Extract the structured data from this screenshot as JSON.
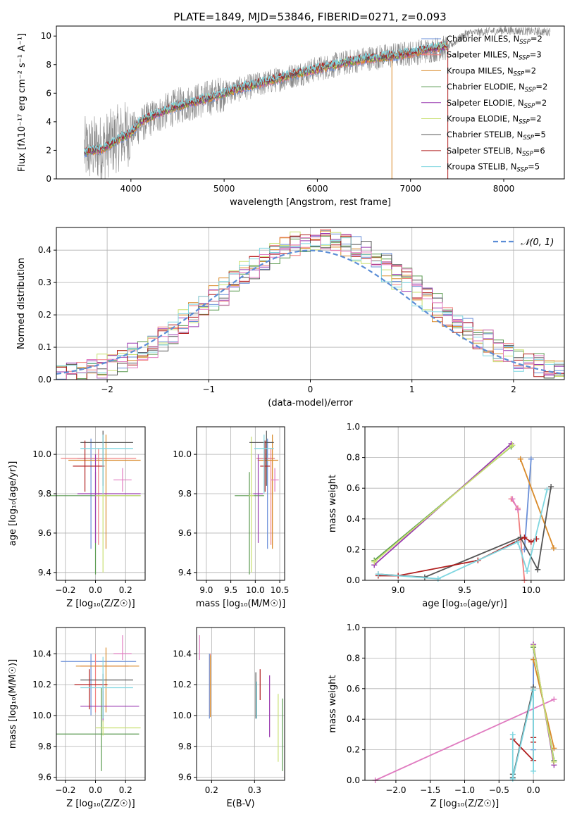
{
  "figure_title": "PLATE=1849, MJD=53846, FIBERID=0271, z=0.093",
  "legend_note": "Legend labels are rendered as shown",
  "colors": {
    "chabrier_miles": "#6a8fd8",
    "salpeter_miles": "#f07f7f",
    "kroupa_miles": "#d98a2a",
    "chabrier_elodie": "#5a9a50",
    "salpeter_elodie": "#9a3ab0",
    "kroupa_elodie": "#c8e070",
    "chabrier_stelib": "#555555",
    "salpeter_stelib": "#b01e1e",
    "kroupa_stelib": "#7fd6e0",
    "pink": "#e07bc0",
    "gray_data": "#888888",
    "normal_curve": "#5b8dd6"
  },
  "chart_data": [
    {
      "panel": "spectrum",
      "type": "line",
      "title": "PLATE=1849, MJD=53846, FIBERID=0271, z=0.093",
      "xlabel": "wavelength [Angstrom, rest frame]",
      "ylabel": "Flux [fλ10⁻¹⁷ erg cm⁻² s⁻¹ A⁻¹]",
      "xlim": [
        3200,
        8650
      ],
      "ylim": [
        0,
        10.7
      ],
      "xticks": [
        "4000",
        "5000",
        "6000",
        "7000",
        "8000"
      ],
      "yticks": [
        "0",
        "2",
        "4",
        "6",
        "8",
        "10"
      ],
      "grid": false,
      "legend_position": "upper right",
      "legend": [
        "Chabrier MILES, N_SSP=2",
        "Salpeter MILES, N_SSP=3",
        "Kroupa MILES, N_SSP=2",
        "Chabrier ELODIE, N_SSP=2",
        "Salpeter ELODIE, N_SSP=2",
        "Kroupa ELODIE, N_SSP=2",
        "Chabrier STELIB, N_SSP=5",
        "Salpeter STELIB, N_SSP=6",
        "Kroupa STELIB, N_SSP=5"
      ],
      "legend_display": [
        {
          "name": "Chabrier MILES, N",
          "sub": "SSP",
          "tail": "=2"
        },
        {
          "name": "Salpeter MILES, N",
          "sub": "SSP",
          "tail": "=3"
        },
        {
          "name": "Kroupa MILES, N",
          "sub": "SSP",
          "tail": "=2"
        },
        {
          "name": "Chabrier ELODIE, N",
          "sub": "SSP",
          "tail": "=2"
        },
        {
          "name": "Salpeter ELODIE, N",
          "sub": "SSP",
          "tail": "=2"
        },
        {
          "name": "Kroupa ELODIE, N",
          "sub": "SSP",
          "tail": "=2"
        },
        {
          "name": "Chabrier STELIB, N",
          "sub": "SSP",
          "tail": "=5"
        },
        {
          "name": "Salpeter STELIB, N",
          "sub": "SSP",
          "tail": "=6"
        },
        {
          "name": "Kroupa STELIB, N",
          "sub": "SSP",
          "tail": "=5"
        }
      ],
      "model_continuum": {
        "x": [
          3500,
          3700,
          3900,
          4000,
          4100,
          4300,
          4500,
          4800,
          5000,
          5200,
          5500,
          5800,
          6000,
          6200,
          6500,
          6800,
          7000,
          7200,
          7400
        ],
        "y": [
          1.9,
          2.1,
          2.9,
          3.2,
          4.0,
          4.6,
          5.1,
          5.6,
          6.0,
          6.4,
          6.9,
          7.4,
          7.7,
          8.0,
          8.4,
          8.6,
          8.8,
          9.1,
          9.3
        ]
      },
      "data_continuum": {
        "x": [
          3500,
          3700,
          3900,
          4000,
          4200,
          4500,
          4800,
          5000,
          5300,
          5600,
          6000,
          6500,
          7000,
          7400,
          7600,
          8000,
          8400
        ],
        "y": [
          2.0,
          2.2,
          3.0,
          3.3,
          4.2,
          5.1,
          5.6,
          6.0,
          6.5,
          7.0,
          7.7,
          8.4,
          8.8,
          9.2,
          10.2,
          10.4,
          10.3
        ]
      }
    },
    {
      "panel": "residual_histogram",
      "type": "histogram",
      "xlabel": "(data-model)/error",
      "ylabel": "Normed distribution",
      "xlim": [
        -2.5,
        2.5
      ],
      "ylim": [
        0,
        0.47
      ],
      "xticks": [
        "−2",
        "−1",
        "0",
        "1",
        "2"
      ],
      "yticks": [
        "0.0",
        "0.1",
        "0.2",
        "0.3",
        "0.4"
      ],
      "grid": true,
      "legend": [
        "𝒩(0, 1)"
      ],
      "legend_position": "upper right",
      "bin_width": 0.1,
      "normal": {
        "mu": 0,
        "sigma": 1
      }
    },
    {
      "panel": "age_vs_Z",
      "type": "errorbar",
      "xlabel": "Z [log₁₀(Z/Z☉)]",
      "ylabel": "age  [log₁₀(age/yr)]",
      "xlim": [
        -0.26,
        0.33
      ],
      "ylim": [
        9.36,
        10.14
      ],
      "xticks": [
        "−0.2",
        "0.0",
        "0.2"
      ],
      "yticks": [
        "9.4",
        "9.6",
        "9.8",
        "10.0"
      ],
      "grid": true,
      "points": [
        {
          "series": "chabrier_miles",
          "x": -0.03,
          "xerr": [
            0.09,
            0.09
          ],
          "y": 9.98,
          "yerr": [
            0.46,
            0.1
          ]
        },
        {
          "series": "salpeter_miles",
          "x": 0.02,
          "xerr": [
            0.25,
            0.25
          ],
          "y": 9.98,
          "yerr": [
            0.44,
            0.05
          ]
        },
        {
          "series": "kroupa_miles",
          "x": 0.07,
          "xerr": [
            0.25,
            0.23
          ],
          "y": 9.97,
          "yerr": [
            0.45,
            0.13
          ]
        },
        {
          "series": "chabrier_elodie",
          "x": 0.0,
          "xerr": [
            0.3,
            0.3
          ],
          "y": 9.79,
          "yerr": [
            0.4,
            0.12
          ]
        },
        {
          "series": "salpeter_elodie",
          "x": 0.0,
          "xerr": [
            0.12,
            0.3
          ],
          "y": 9.8,
          "yerr": [
            0.25,
            0.2
          ]
        },
        {
          "series": "kroupa_elodie",
          "x": 0.05,
          "xerr": [
            0.05,
            0.25
          ],
          "y": 9.79,
          "yerr": [
            0.39,
            0.3
          ]
        },
        {
          "series": "chabrier_stelib",
          "x": 0.05,
          "xerr": [
            0.15,
            0.2
          ],
          "y": 10.06,
          "yerr": [
            0.22,
            0.06
          ]
        },
        {
          "series": "salpeter_stelib",
          "x": -0.07,
          "xerr": [
            0.08,
            0.13
          ],
          "y": 9.94,
          "yerr": [
            0.13,
            0.13
          ]
        },
        {
          "series": "kroupa_stelib",
          "x": 0.05,
          "xerr": [
            0.15,
            0.2
          ],
          "y": 10.03,
          "yerr": [
            0.23,
            0.07
          ]
        },
        {
          "series": "pink",
          "x": 0.18,
          "xerr": [
            0.06,
            0.06
          ],
          "y": 9.87,
          "yerr": [
            0.06,
            0.06
          ]
        }
      ]
    },
    {
      "panel": "age_vs_mass",
      "type": "errorbar",
      "xlabel": "mass [log₁₀(M/M☉)]",
      "ylabel": "",
      "xlim": [
        8.8,
        10.6
      ],
      "ylim": [
        9.36,
        10.14
      ],
      "xticks": [
        "9.0",
        "9.5",
        "10.0",
        "10.5"
      ],
      "yticks": [
        "9.4",
        "9.6",
        "9.8",
        "10.0"
      ],
      "grid": true,
      "points": [
        {
          "series": "chabrier_miles",
          "x": 10.25,
          "xerr": [
            0.2,
            0.15
          ],
          "y": 9.98,
          "yerr": [
            0.46,
            0.1
          ]
        },
        {
          "series": "salpeter_miles",
          "x": 10.32,
          "xerr": [
            0.3,
            0.08
          ],
          "y": 9.98,
          "yerr": [
            0.44,
            0.05
          ]
        },
        {
          "series": "kroupa_miles",
          "x": 10.35,
          "xerr": [
            0.3,
            0.12
          ],
          "y": 9.97,
          "yerr": [
            0.45,
            0.13
          ]
        },
        {
          "series": "chabrier_elodie",
          "x": 9.88,
          "xerr": [
            0.3,
            0.3
          ],
          "y": 9.79,
          "yerr": [
            0.4,
            0.12
          ]
        },
        {
          "series": "salpeter_elodie",
          "x": 10.06,
          "xerr": [
            0.1,
            0.1
          ],
          "y": 9.8,
          "yerr": [
            0.25,
            0.2
          ]
        },
        {
          "series": "kroupa_elodie",
          "x": 9.92,
          "xerr": [
            0.05,
            0.05
          ],
          "y": 9.79,
          "yerr": [
            0.39,
            0.3
          ]
        },
        {
          "series": "chabrier_stelib",
          "x": 10.23,
          "xerr": [
            0.35,
            0.15
          ],
          "y": 10.06,
          "yerr": [
            0.22,
            0.06
          ]
        },
        {
          "series": "salpeter_stelib",
          "x": 10.2,
          "xerr": [
            0.1,
            0.1
          ],
          "y": 9.94,
          "yerr": [
            0.13,
            0.13
          ]
        },
        {
          "series": "kroupa_stelib",
          "x": 10.18,
          "xerr": [
            0.2,
            0.2
          ],
          "y": 10.03,
          "yerr": [
            0.23,
            0.07
          ]
        },
        {
          "series": "pink",
          "x": 10.4,
          "xerr": [
            0.08,
            0.08
          ],
          "y": 9.87,
          "yerr": [
            0.06,
            0.06
          ]
        }
      ]
    },
    {
      "panel": "mass_weight_vs_age",
      "type": "line",
      "xlabel": "age  [log₁₀(age/yr)]",
      "ylabel": "mass weight",
      "xlim": [
        8.75,
        10.25
      ],
      "ylim": [
        0,
        1.0
      ],
      "xticks": [
        "9.0",
        "9.5",
        "10.0"
      ],
      "yticks": [
        "0.0",
        "0.2",
        "0.4",
        "0.6",
        "0.8",
        "1.0"
      ],
      "grid": true,
      "series": [
        {
          "name": "chabrier_miles",
          "x": [
            9.95,
            10.0
          ],
          "y": [
            0.2,
            0.79
          ]
        },
        {
          "name": "salpeter_miles",
          "x": [
            9.85,
            9.9,
            9.95
          ],
          "y": [
            0.53,
            0.47,
            0.0
          ]
        },
        {
          "name": "kroupa_miles",
          "x": [
            9.92,
            10.17
          ],
          "y": [
            0.79,
            0.21
          ]
        },
        {
          "name": "chabrier_elodie",
          "x": [
            8.82,
            9.85
          ],
          "y": [
            0.13,
            0.87
          ]
        },
        {
          "name": "salpeter_elodie",
          "x": [
            8.82,
            9.85
          ],
          "y": [
            0.1,
            0.89
          ]
        },
        {
          "name": "kroupa_elodie",
          "x": [
            8.82,
            9.86
          ],
          "y": [
            0.12,
            0.88
          ]
        },
        {
          "name": "chabrier_stelib",
          "x": [
            8.85,
            9.2,
            9.92,
            10.05,
            10.15
          ],
          "y": [
            0.04,
            0.02,
            0.28,
            0.07,
            0.61
          ]
        },
        {
          "name": "salpeter_stelib",
          "x": [
            8.85,
            9.0,
            9.6,
            9.95,
            10.0,
            10.04
          ],
          "y": [
            0.03,
            0.03,
            0.13,
            0.28,
            0.25,
            0.27
          ]
        },
        {
          "name": "kroupa_stelib",
          "x": [
            8.85,
            9.3,
            9.9,
            9.97,
            10.12
          ],
          "y": [
            0.04,
            0.01,
            0.25,
            0.06,
            0.59
          ]
        },
        {
          "name": "pink",
          "x": [
            9.86,
            9.9
          ],
          "y": [
            0.53,
            0.46
          ]
        }
      ]
    },
    {
      "panel": "mass_vs_Z",
      "type": "errorbar",
      "xlabel": "Z [log₁₀(Z/Z☉)]",
      "ylabel": "mass [log₁₀(M/M☉)]",
      "xlim": [
        -0.26,
        0.33
      ],
      "ylim": [
        9.58,
        10.57
      ],
      "xticks": [
        "−0.2",
        "0.0",
        "0.2"
      ],
      "yticks": [
        "9.6",
        "9.8",
        "10.0",
        "10.2",
        "10.4"
      ],
      "grid": true,
      "points": [
        {
          "series": "chabrier_miles",
          "x": -0.03,
          "xerr": [
            0.2,
            0.3
          ],
          "y": 10.35,
          "yerr": [
            0.35,
            0.05
          ]
        },
        {
          "series": "salpeter_miles",
          "x": 0.0,
          "xerr": [
            0.1,
            0.22
          ],
          "y": 10.32,
          "yerr": [
            0.3,
            0.08
          ]
        },
        {
          "series": "kroupa_miles",
          "x": 0.07,
          "xerr": [
            0.2,
            0.22
          ],
          "y": 10.32,
          "yerr": [
            0.3,
            0.12
          ]
        },
        {
          "series": "chabrier_elodie",
          "x": 0.04,
          "xerr": [
            0.3,
            0.25
          ],
          "y": 9.88,
          "yerr": [
            0.24,
            0.3
          ]
        },
        {
          "series": "salpeter_elodie",
          "x": 0.05,
          "xerr": [
            0.15,
            0.24
          ],
          "y": 10.06,
          "yerr": [
            0.1,
            0.1
          ]
        },
        {
          "series": "kroupa_elodie",
          "x": 0.05,
          "xerr": [
            0.05,
            0.25
          ],
          "y": 9.92,
          "yerr": [
            0.05,
            0.05
          ]
        },
        {
          "series": "chabrier_stelib",
          "x": 0.05,
          "xerr": [
            0.15,
            0.2
          ],
          "y": 10.23,
          "yerr": [
            0.25,
            0.04
          ]
        },
        {
          "series": "salpeter_stelib",
          "x": -0.04,
          "xerr": [
            0.1,
            0.12
          ],
          "y": 10.2,
          "yerr": [
            0.16,
            0.1
          ]
        },
        {
          "series": "kroupa_stelib",
          "x": 0.05,
          "xerr": [
            0.15,
            0.2
          ],
          "y": 10.18,
          "yerr": [
            0.2,
            0.2
          ]
        },
        {
          "series": "pink",
          "x": 0.18,
          "xerr": [
            0.06,
            0.06
          ],
          "y": 10.4,
          "yerr": [
            0.04,
            0.12
          ]
        }
      ]
    },
    {
      "panel": "mass_vs_ebv",
      "type": "errorbar",
      "xlabel": "E(B-V)",
      "ylabel": "",
      "xlim": [
        0.165,
        0.37
      ],
      "ylim": [
        9.58,
        10.57
      ],
      "xticks": [
        "0.2",
        "0.3"
      ],
      "yticks": [
        "9.6",
        "9.8",
        "10.0",
        "10.2",
        "10.4"
      ],
      "grid": true,
      "points": [
        {
          "series": "chabrier_miles",
          "x": 0.195,
          "y": 10.2,
          "yerr": [
            0.22,
            0.2
          ]
        },
        {
          "series": "salpeter_miles",
          "x": 0.197,
          "y": 10.2,
          "yerr": [
            0.2,
            0.2
          ]
        },
        {
          "series": "kroupa_miles",
          "x": 0.197,
          "y": 10.19,
          "yerr": [
            0.2,
            0.2
          ]
        },
        {
          "series": "chabrier_elodie",
          "x": 0.365,
          "y": 9.88,
          "yerr": [
            0.24,
            0.23
          ]
        },
        {
          "series": "salpeter_elodie",
          "x": 0.335,
          "y": 10.06,
          "yerr": [
            0.2,
            0.2
          ]
        },
        {
          "series": "kroupa_elodie",
          "x": 0.355,
          "y": 9.92,
          "yerr": [
            0.22,
            0.22
          ]
        },
        {
          "series": "chabrier_stelib",
          "x": 0.303,
          "y": 10.13,
          "yerr": [
            0.15,
            0.15
          ]
        },
        {
          "series": "salpeter_stelib",
          "x": 0.313,
          "y": 10.2,
          "yerr": [
            0.1,
            0.1
          ]
        },
        {
          "series": "kroupa_stelib",
          "x": 0.305,
          "y": 10.1,
          "yerr": [
            0.12,
            0.12
          ]
        },
        {
          "series": "pink",
          "x": 0.172,
          "y": 10.44,
          "yerr": [
            0.08,
            0.08
          ]
        }
      ]
    },
    {
      "panel": "mass_weight_vs_Z",
      "type": "line",
      "xlabel": "Z [log₁₀(Z/Z☉)]",
      "ylabel": "mass weight",
      "xlim": [
        -2.45,
        0.45
      ],
      "ylim": [
        0,
        1.0
      ],
      "xticks": [
        "−2.0",
        "−1.5",
        "−1.0",
        "−0.5",
        "0.0"
      ],
      "yticks": [
        "0.0",
        "0.2",
        "0.4",
        "0.6",
        "0.8",
        "1.0"
      ],
      "grid": true,
      "series": [
        {
          "name": "pink",
          "x": [
            -2.3,
            0.3
          ],
          "y": [
            0.0,
            0.53
          ]
        },
        {
          "name": "chabrier_miles",
          "x": [
            0.0,
            0.0
          ],
          "y": [
            0.2,
            0.79
          ]
        },
        {
          "name": "kroupa_miles",
          "x": [
            0.0,
            0.3
          ],
          "y": [
            0.79,
            0.21
          ]
        },
        {
          "name": "chabrier_elodie",
          "x": [
            0.0,
            0.3
          ],
          "y": [
            0.87,
            0.13
          ]
        },
        {
          "name": "salpeter_elodie",
          "x": [
            0.0,
            0.3
          ],
          "y": [
            0.89,
            0.1
          ]
        },
        {
          "name": "kroupa_elodie",
          "x": [
            0.0,
            0.3
          ],
          "y": [
            0.88,
            0.12
          ]
        },
        {
          "name": "chabrier_stelib",
          "x": [
            -0.3,
            -0.3,
            0.0,
            0.0
          ],
          "y": [
            0.04,
            0.02,
            0.61,
            0.28
          ]
        },
        {
          "name": "salpeter_stelib",
          "x": [
            -0.3,
            0.0,
            0.0,
            0.0
          ],
          "y": [
            0.27,
            0.13,
            0.25,
            0.28
          ]
        },
        {
          "name": "kroupa_stelib",
          "x": [
            -0.3,
            -0.3,
            0.0,
            0.0
          ],
          "y": [
            0.3,
            0.01,
            0.59,
            0.06
          ]
        }
      ]
    }
  ]
}
